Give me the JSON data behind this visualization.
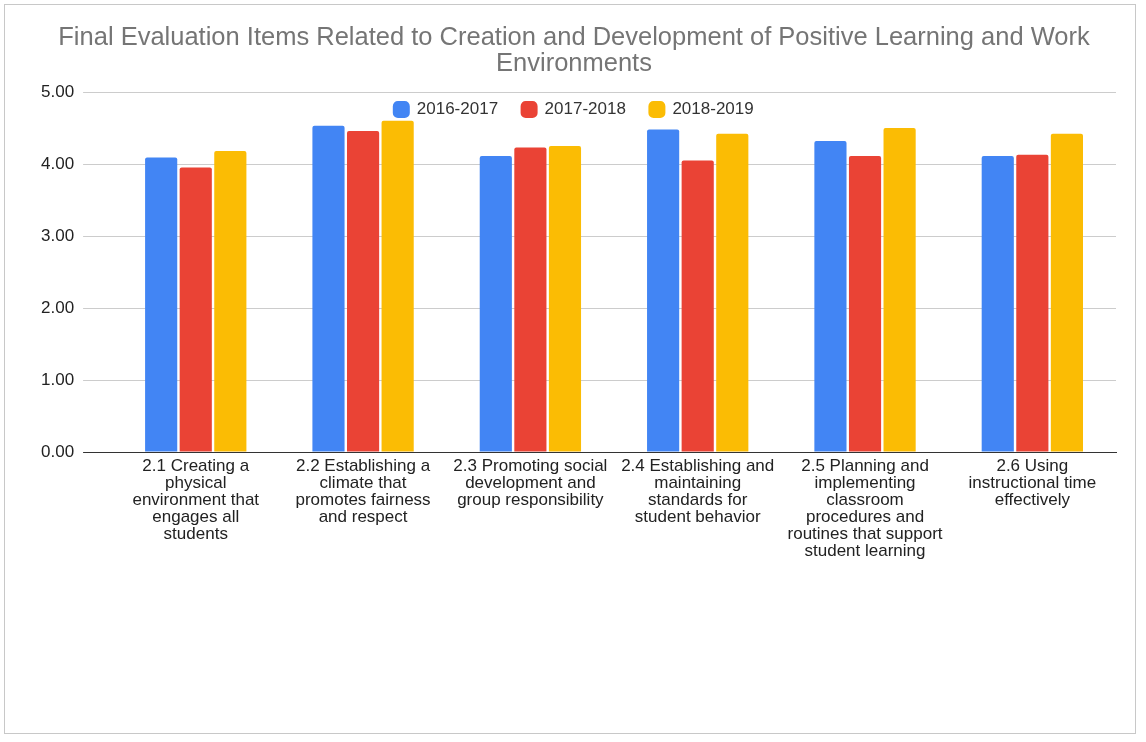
{
  "chart_data": {
    "type": "bar",
    "title": "Final Evaluation Items Related to Creation and Development of Positive Learning and Work Environments",
    "categories": [
      "2.1 Creating a physical environment that engages all students",
      "2.2 Establishing a climate that promotes fairness and respect",
      "2.3 Promoting social development and group responsibility",
      "2.4 Establishing and maintaining standards for student behavior",
      "2.5 Planning and implementing classroom procedures and routines that support student learning",
      "2.6 Using instructional time effectively"
    ],
    "series": [
      {
        "name": "2016-2017",
        "color": "#4285f4",
        "values": [
          4.09,
          4.53,
          4.11,
          4.48,
          4.32,
          4.11
        ]
      },
      {
        "name": "2017-2018",
        "color": "#ea4335",
        "values": [
          3.95,
          4.46,
          4.23,
          4.05,
          4.11,
          4.13
        ]
      },
      {
        "name": "2018-2019",
        "color": "#fbbc04",
        "values": [
          4.18,
          4.6,
          4.25,
          4.42,
          4.5,
          4.42
        ]
      }
    ],
    "ylim": [
      0,
      5
    ],
    "yticks": [
      {
        "value": 0,
        "label": "0.00"
      },
      {
        "value": 1,
        "label": "1.00"
      },
      {
        "value": 2,
        "label": "2.00"
      },
      {
        "value": 3,
        "label": "3.00"
      },
      {
        "value": 4,
        "label": "4.00"
      },
      {
        "value": 5,
        "label": "5.00"
      }
    ],
    "grid": "y",
    "legend": "top"
  }
}
